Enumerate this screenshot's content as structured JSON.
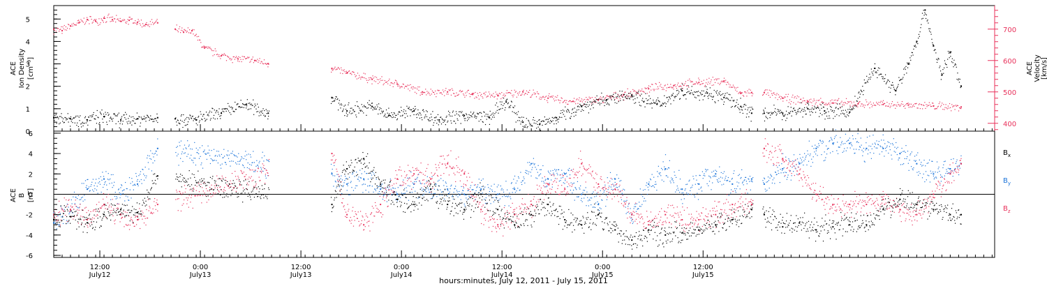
{
  "chart_data": [
    {
      "type": "scatter",
      "panel": "top",
      "left_ylabel": [
        "ACE",
        "Ion Density",
        "[cm⁻³]"
      ],
      "right_ylabel": [
        "ACE",
        "Velocity",
        "[km/s]"
      ],
      "left_ylim": [
        0,
        5.6
      ],
      "left_yticks": [
        "0",
        "1",
        "2",
        "3",
        "4",
        "5"
      ],
      "left_ytick_values": [
        0,
        1,
        2,
        3,
        4,
        5
      ],
      "right_ylim": [
        375,
        775
      ],
      "right_yticks": [
        "400",
        "500",
        "600",
        "700"
      ],
      "right_ytick_values": [
        400,
        500,
        600,
        700
      ],
      "x_unit": "hours since 06:30 July 12, 2011",
      "data_gaps_hours": [
        [
          12.4,
          14.5
        ],
        [
          25.7,
          33.1
        ],
        [
          83.5,
          84.6
        ]
      ],
      "series": [
        {
          "name": "Ion Density",
          "axis": "left",
          "color": "#000000",
          "x": [
            0,
            2,
            4,
            6,
            8,
            10,
            12.4,
            14.5,
            17,
            20,
            23,
            25.6,
            33.2,
            35,
            38,
            40,
            43,
            46,
            49,
            52,
            54,
            56,
            58,
            60,
            63,
            66,
            69,
            72,
            75,
            78,
            80,
            82,
            83.3,
            84.8,
            87,
            90,
            92,
            95,
            98,
            100.5,
            102,
            103,
            104,
            105,
            106,
            107,
            108.3
          ],
          "y": [
            0.6,
            0.55,
            0.5,
            0.65,
            0.5,
            0.55,
            0.6,
            0.55,
            0.5,
            0.8,
            1.2,
            0.8,
            1.5,
            0.9,
            1.1,
            0.7,
            0.9,
            0.5,
            0.7,
            0.6,
            1.3,
            0.4,
            0.3,
            0.6,
            1.1,
            1.4,
            1.6,
            1.2,
            1.8,
            1.7,
            1.5,
            1.1,
            0.8,
            0.8,
            0.8,
            1.0,
            0.9,
            0.85,
            2.8,
            1.8,
            3.0,
            4.0,
            5.4,
            3.8,
            2.5,
            3.5,
            2.0
          ]
        },
        {
          "name": "Velocity",
          "axis": "right",
          "color": "#e8305a",
          "x": [
            0,
            1,
            2,
            3,
            4,
            5,
            6,
            7,
            8,
            9,
            10,
            11,
            12.4,
            14.5,
            15.5,
            16.5,
            18,
            20,
            22,
            24,
            25.6,
            33.2,
            35,
            38,
            41,
            44,
            47,
            50,
            53,
            56,
            59,
            62,
            65,
            68,
            71,
            74,
            77,
            80,
            82,
            83.3,
            84.8,
            87,
            90,
            93,
            96,
            99,
            102,
            105,
            108.3
          ],
          "y": [
            700,
            695,
            710,
            720,
            730,
            725,
            735,
            730,
            725,
            728,
            722,
            715,
            720,
            700,
            690,
            695,
            640,
            615,
            605,
            600,
            590,
            575,
            560,
            540,
            525,
            500,
            500,
            492,
            488,
            500,
            480,
            470,
            475,
            490,
            510,
            520,
            530,
            535,
            495,
            498,
            498,
            480,
            470,
            465,
            462,
            460,
            458,
            455,
            452
          ]
        }
      ]
    },
    {
      "type": "scatter",
      "panel": "bottom",
      "left_ylabel": [
        "ACE",
        "B",
        "[nT]"
      ],
      "left_ylim": [
        -6.2,
        6.2
      ],
      "left_yticks": [
        "-6",
        "-4",
        "-2",
        "0",
        "2",
        "4",
        "6"
      ],
      "left_ytick_values": [
        -6,
        -4,
        -2,
        0,
        2,
        4,
        6
      ],
      "zero_line": true,
      "x_unit": "hours since 06:30 July 12, 2011",
      "data_gaps_hours": [
        [
          12.4,
          14.5
        ],
        [
          25.7,
          33.1
        ],
        [
          83.5,
          84.6
        ]
      ],
      "legend": [
        "Bx",
        "By",
        "Bz"
      ],
      "legend_placement": "right",
      "series": [
        {
          "name": "Bx",
          "color": "#000000",
          "x": [
            0,
            2,
            4,
            6,
            8,
            10,
            12.4,
            33.2,
            35,
            37,
            39,
            41,
            43,
            45,
            47,
            49,
            51,
            53,
            55,
            57,
            59,
            61,
            63,
            65,
            67,
            69,
            71,
            73,
            75,
            77,
            79,
            81,
            83.3,
            84.8,
            87,
            89,
            91,
            93,
            95,
            97,
            99,
            101,
            103,
            105,
            107,
            108.3
          ],
          "y": [
            -2.5,
            -2.2,
            -2.8,
            -2.0,
            -1.5,
            -1.8,
            1.8,
            -1.0,
            2.5,
            3.5,
            1.0,
            -0.5,
            -1.0,
            0.5,
            -1.0,
            -1.5,
            0.0,
            -1.5,
            -3.0,
            -2.0,
            -1.0,
            -2.5,
            -3.0,
            -2.0,
            -3.5,
            -4.5,
            -3.5,
            -4.0,
            -3.8,
            -3.5,
            -3.0,
            -2.5,
            -1.5,
            -2.0,
            -3.2,
            -2.8,
            -3.5,
            -3.2,
            -3.0,
            -3.0,
            -1.5,
            -0.5,
            -1.0,
            -1.5,
            -2.0,
            -2.0
          ]
        },
        {
          "name": "By",
          "color": "#1a73d9",
          "x": [
            0,
            2,
            4,
            6,
            8,
            10,
            12.4,
            33.2,
            35,
            37,
            39,
            41,
            43,
            45,
            47,
            49,
            51,
            53,
            55,
            57,
            59,
            61,
            63,
            65,
            67,
            69,
            71,
            73,
            75,
            77,
            79,
            81,
            83.3,
            84.8,
            87,
            89,
            91,
            93,
            95,
            97,
            99,
            101,
            103,
            105,
            107,
            108.3
          ],
          "y": [
            -2.8,
            -1.5,
            0.5,
            1.5,
            0.0,
            1.0,
            4.5,
            2.0,
            1.0,
            1.5,
            0.5,
            0.0,
            1.0,
            0.5,
            0.5,
            0.0,
            0.5,
            0.0,
            0.5,
            3.0,
            1.5,
            2.0,
            0.0,
            -1.0,
            1.5,
            -2.0,
            1.0,
            2.5,
            0.5,
            1.0,
            2.0,
            1.0,
            1.5,
            1.0,
            2.5,
            3.0,
            4.5,
            5.0,
            5.0,
            4.5,
            4.5,
            4.0,
            3.0,
            2.0,
            2.5,
            3.0
          ]
        },
        {
          "name": "Bz",
          "color": "#e8305a",
          "x": [
            0,
            2,
            4,
            6,
            8,
            10,
            12.4,
            33.2,
            35,
            37,
            39,
            41,
            43,
            45,
            47,
            49,
            51,
            53,
            55,
            57,
            59,
            61,
            63,
            65,
            67,
            69,
            71,
            73,
            75,
            77,
            79,
            81,
            83.3,
            84.8,
            87,
            89,
            91,
            93,
            95,
            97,
            99,
            101,
            103,
            105,
            107,
            108.3
          ],
          "y": [
            -2.0,
            -1.5,
            -2.5,
            -1.0,
            -2.0,
            -2.5,
            -1.0,
            4.0,
            -2.0,
            -3.0,
            -1.0,
            1.5,
            2.0,
            1.5,
            3.0,
            2.0,
            -1.5,
            -3.0,
            -2.0,
            -1.0,
            1.0,
            0.5,
            3.0,
            1.0,
            0.5,
            -2.0,
            -3.0,
            -2.0,
            -2.5,
            -2.5,
            -2.0,
            -1.0,
            -1.0,
            4.5,
            3.5,
            2.0,
            0.0,
            -1.0,
            -1.0,
            -1.0,
            -0.5,
            -1.5,
            -2.0,
            0.0,
            2.0,
            3.0
          ]
        }
      ]
    }
  ],
  "x_axis": {
    "range_hours": [
      0,
      112.3
    ],
    "ticks": [
      {
        "hour": 5.5,
        "time": "12:00",
        "date": "July12"
      },
      {
        "hour": 17.5,
        "time": "0:00",
        "date": "July13"
      },
      {
        "hour": 29.5,
        "time": "12:00",
        "date": "July13"
      },
      {
        "hour": 41.5,
        "time": "0:00",
        "date": "July14"
      },
      {
        "hour": 53.5,
        "time": "12:00",
        "date": "July14"
      },
      {
        "hour": 65.5,
        "time": "0:00",
        "date": "July15"
      },
      {
        "hour": 77.5,
        "time": "12:00",
        "date": "July15"
      }
    ],
    "title": "hours:minutes, July 12, 2011 - July 15, 2011"
  }
}
